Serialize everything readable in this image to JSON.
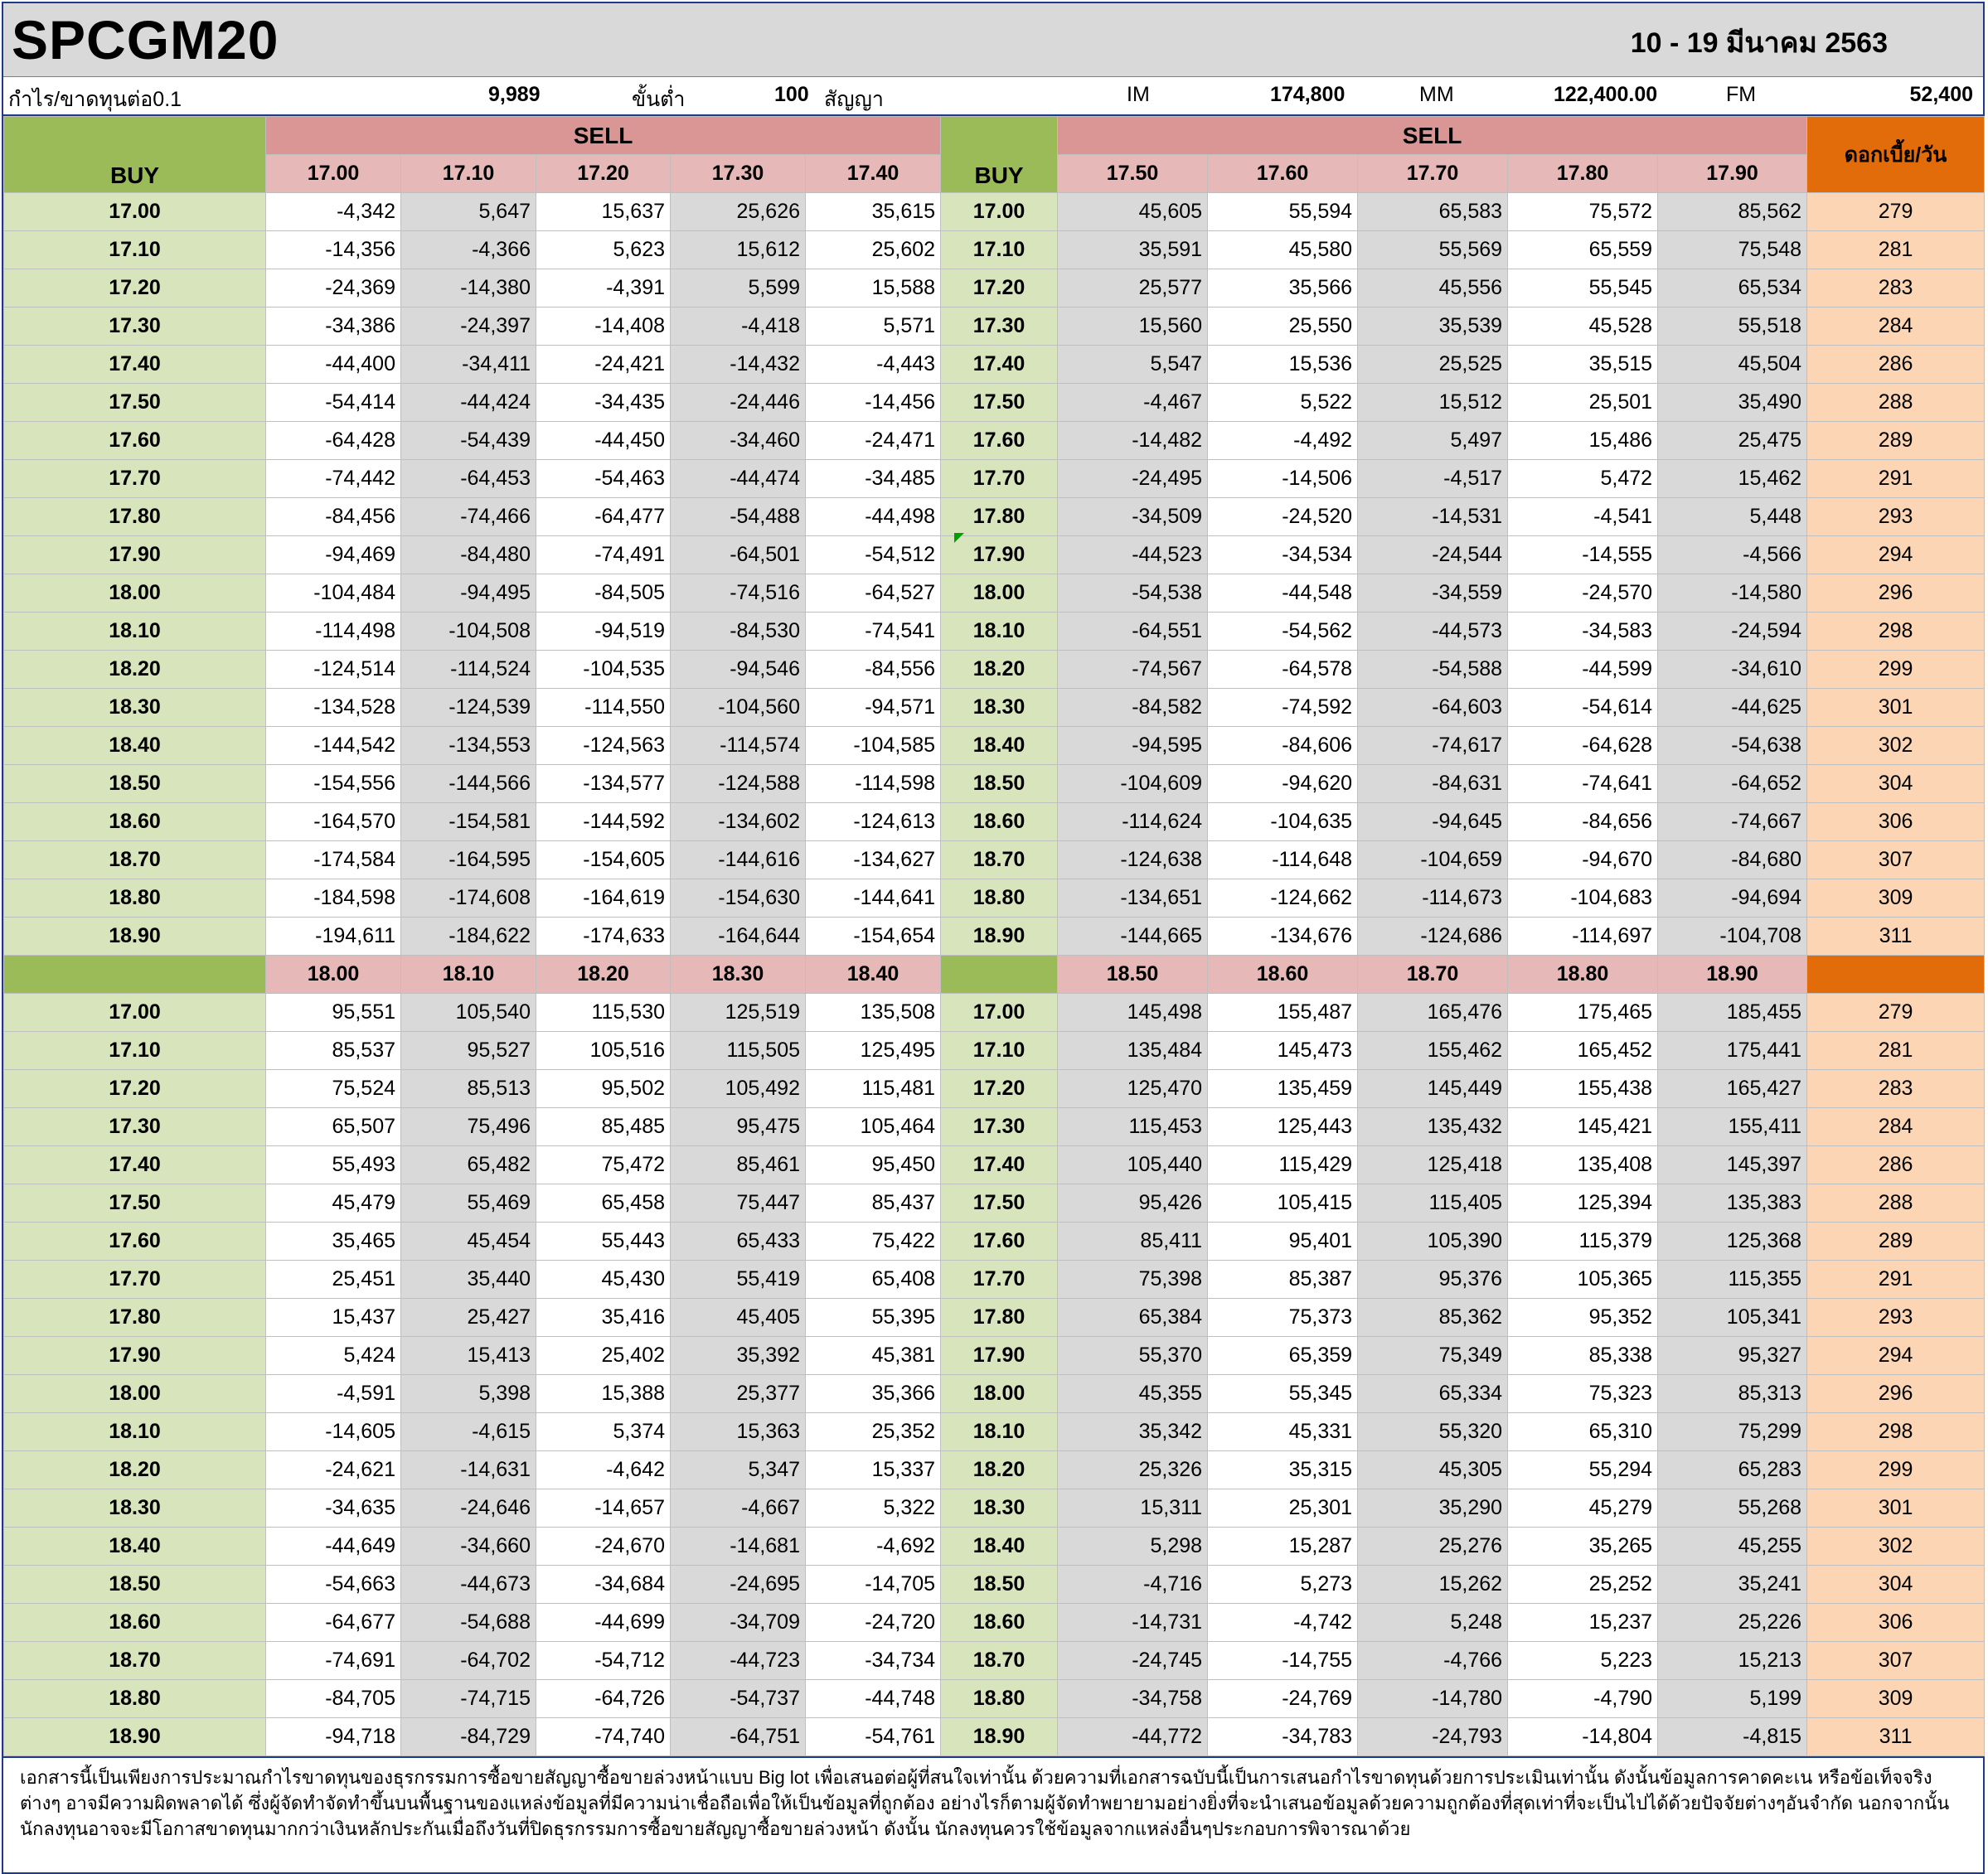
{
  "title": "SPCGM20",
  "date_range": "10  -  19 มีนาคม 2563",
  "info": {
    "profit_label": "กำไร/ขาดทุนต่อ0.1",
    "profit_value": "9,989",
    "min_label": "ขั้นต่ำ",
    "min_value": "100",
    "contract_label": "สัญญา",
    "im_label": "IM",
    "im_value": "174,800",
    "mm_label": "MM",
    "mm_value": "122,400.00",
    "fm_label": "FM",
    "fm_value": "52,400"
  },
  "labels": {
    "buy": "BUY",
    "sell": "SELL",
    "interest": "ดอกเบี้ย/วัน"
  },
  "buy_prices": [
    "17.00",
    "17.10",
    "17.20",
    "17.30",
    "17.40",
    "17.50",
    "17.60",
    "17.70",
    "17.80",
    "17.90",
    "18.00",
    "18.10",
    "18.20",
    "18.30",
    "18.40",
    "18.50",
    "18.60",
    "18.70",
    "18.80",
    "18.90"
  ],
  "interest": [
    "279",
    "281",
    "283",
    "284",
    "286",
    "288",
    "289",
    "291",
    "293",
    "294",
    "296",
    "298",
    "299",
    "301",
    "302",
    "304",
    "306",
    "307",
    "309",
    "311"
  ],
  "blocks": [
    {
      "sell_left": [
        "17.00",
        "17.10",
        "17.20",
        "17.30",
        "17.40"
      ],
      "sell_right": [
        "17.50",
        "17.60",
        "17.70",
        "17.80",
        "17.90"
      ],
      "rows": [
        [
          "-4,342",
          "5,647",
          "15,637",
          "25,626",
          "35,615",
          "45,605",
          "55,594",
          "65,583",
          "75,572",
          "85,562"
        ],
        [
          "-14,356",
          "-4,366",
          "5,623",
          "15,612",
          "25,602",
          "35,591",
          "45,580",
          "55,569",
          "65,559",
          "75,548"
        ],
        [
          "-24,369",
          "-14,380",
          "-4,391",
          "5,599",
          "15,588",
          "25,577",
          "35,566",
          "45,556",
          "55,545",
          "65,534"
        ],
        [
          "-34,386",
          "-24,397",
          "-14,408",
          "-4,418",
          "5,571",
          "15,560",
          "25,550",
          "35,539",
          "45,528",
          "55,518"
        ],
        [
          "-44,400",
          "-34,411",
          "-24,421",
          "-14,432",
          "-4,443",
          "5,547",
          "15,536",
          "25,525",
          "35,515",
          "45,504"
        ],
        [
          "-54,414",
          "-44,424",
          "-34,435",
          "-24,446",
          "-14,456",
          "-4,467",
          "5,522",
          "15,512",
          "25,501",
          "35,490"
        ],
        [
          "-64,428",
          "-54,439",
          "-44,450",
          "-34,460",
          "-24,471",
          "-14,482",
          "-4,492",
          "5,497",
          "15,486",
          "25,475"
        ],
        [
          "-74,442",
          "-64,453",
          "-54,463",
          "-44,474",
          "-34,485",
          "-24,495",
          "-14,506",
          "-4,517",
          "5,472",
          "15,462"
        ],
        [
          "-84,456",
          "-74,466",
          "-64,477",
          "-54,488",
          "-44,498",
          "-34,509",
          "-24,520",
          "-14,531",
          "-4,541",
          "5,448"
        ],
        [
          "-94,469",
          "-84,480",
          "-74,491",
          "-64,501",
          "-54,512",
          "-44,523",
          "-34,534",
          "-24,544",
          "-14,555",
          "-4,566"
        ],
        [
          "-104,484",
          "-94,495",
          "-84,505",
          "-74,516",
          "-64,527",
          "-54,538",
          "-44,548",
          "-34,559",
          "-24,570",
          "-14,580"
        ],
        [
          "-114,498",
          "-104,508",
          "-94,519",
          "-84,530",
          "-74,541",
          "-64,551",
          "-54,562",
          "-44,573",
          "-34,583",
          "-24,594"
        ],
        [
          "-124,514",
          "-114,524",
          "-104,535",
          "-94,546",
          "-84,556",
          "-74,567",
          "-64,578",
          "-54,588",
          "-44,599",
          "-34,610"
        ],
        [
          "-134,528",
          "-124,539",
          "-114,550",
          "-104,560",
          "-94,571",
          "-84,582",
          "-74,592",
          "-64,603",
          "-54,614",
          "-44,625"
        ],
        [
          "-144,542",
          "-134,553",
          "-124,563",
          "-114,574",
          "-104,585",
          "-94,595",
          "-84,606",
          "-74,617",
          "-64,628",
          "-54,638"
        ],
        [
          "-154,556",
          "-144,566",
          "-134,577",
          "-124,588",
          "-114,598",
          "-104,609",
          "-94,620",
          "-84,631",
          "-74,641",
          "-64,652"
        ],
        [
          "-164,570",
          "-154,581",
          "-144,592",
          "-134,602",
          "-124,613",
          "-114,624",
          "-104,635",
          "-94,645",
          "-84,656",
          "-74,667"
        ],
        [
          "-174,584",
          "-164,595",
          "-154,605",
          "-144,616",
          "-134,627",
          "-124,638",
          "-114,648",
          "-104,659",
          "-94,670",
          "-84,680"
        ],
        [
          "-184,598",
          "-174,608",
          "-164,619",
          "-154,630",
          "-144,641",
          "-134,651",
          "-124,662",
          "-114,673",
          "-104,683",
          "-94,694"
        ],
        [
          "-194,611",
          "-184,622",
          "-174,633",
          "-164,644",
          "-154,654",
          "-144,665",
          "-134,676",
          "-124,686",
          "-114,697",
          "-104,708"
        ]
      ]
    },
    {
      "sell_left": [
        "18.00",
        "18.10",
        "18.20",
        "18.30",
        "18.40"
      ],
      "sell_right": [
        "18.50",
        "18.60",
        "18.70",
        "18.80",
        "18.90"
      ],
      "rows": [
        [
          "95,551",
          "105,540",
          "115,530",
          "125,519",
          "135,508",
          "145,498",
          "155,487",
          "165,476",
          "175,465",
          "185,455"
        ],
        [
          "85,537",
          "95,527",
          "105,516",
          "115,505",
          "125,495",
          "135,484",
          "145,473",
          "155,462",
          "165,452",
          "175,441"
        ],
        [
          "75,524",
          "85,513",
          "95,502",
          "105,492",
          "115,481",
          "125,470",
          "135,459",
          "145,449",
          "155,438",
          "165,427"
        ],
        [
          "65,507",
          "75,496",
          "85,485",
          "95,475",
          "105,464",
          "115,453",
          "125,443",
          "135,432",
          "145,421",
          "155,411"
        ],
        [
          "55,493",
          "65,482",
          "75,472",
          "85,461",
          "95,450",
          "105,440",
          "115,429",
          "125,418",
          "135,408",
          "145,397"
        ],
        [
          "45,479",
          "55,469",
          "65,458",
          "75,447",
          "85,437",
          "95,426",
          "105,415",
          "115,405",
          "125,394",
          "135,383"
        ],
        [
          "35,465",
          "45,454",
          "55,443",
          "65,433",
          "75,422",
          "85,411",
          "95,401",
          "105,390",
          "115,379",
          "125,368"
        ],
        [
          "25,451",
          "35,440",
          "45,430",
          "55,419",
          "65,408",
          "75,398",
          "85,387",
          "95,376",
          "105,365",
          "115,355"
        ],
        [
          "15,437",
          "25,427",
          "35,416",
          "45,405",
          "55,395",
          "65,384",
          "75,373",
          "85,362",
          "95,352",
          "105,341"
        ],
        [
          "5,424",
          "15,413",
          "25,402",
          "35,392",
          "45,381",
          "55,370",
          "65,359",
          "75,349",
          "85,338",
          "95,327"
        ],
        [
          "-4,591",
          "5,398",
          "15,388",
          "25,377",
          "35,366",
          "45,355",
          "55,345",
          "65,334",
          "75,323",
          "85,313"
        ],
        [
          "-14,605",
          "-4,615",
          "5,374",
          "15,363",
          "25,352",
          "35,342",
          "45,331",
          "55,320",
          "65,310",
          "75,299"
        ],
        [
          "-24,621",
          "-14,631",
          "-4,642",
          "5,347",
          "15,337",
          "25,326",
          "35,315",
          "45,305",
          "55,294",
          "65,283"
        ],
        [
          "-34,635",
          "-24,646",
          "-14,657",
          "-4,667",
          "5,322",
          "15,311",
          "25,301",
          "35,290",
          "45,279",
          "55,268"
        ],
        [
          "-44,649",
          "-34,660",
          "-24,670",
          "-14,681",
          "-4,692",
          "5,298",
          "15,287",
          "25,276",
          "35,265",
          "45,255"
        ],
        [
          "-54,663",
          "-44,673",
          "-34,684",
          "-24,695",
          "-14,705",
          "-4,716",
          "5,273",
          "15,262",
          "25,252",
          "35,241"
        ],
        [
          "-64,677",
          "-54,688",
          "-44,699",
          "-34,709",
          "-24,720",
          "-14,731",
          "-4,742",
          "5,248",
          "15,237",
          "25,226"
        ],
        [
          "-74,691",
          "-64,702",
          "-54,712",
          "-44,723",
          "-34,734",
          "-24,745",
          "-14,755",
          "-4,766",
          "5,223",
          "15,213"
        ],
        [
          "-84,705",
          "-74,715",
          "-64,726",
          "-54,737",
          "-44,748",
          "-34,758",
          "-24,769",
          "-14,780",
          "-4,790",
          "5,199"
        ],
        [
          "-94,718",
          "-84,729",
          "-74,740",
          "-64,751",
          "-54,761",
          "-44,772",
          "-34,783",
          "-24,793",
          "-14,804",
          "-4,815"
        ]
      ]
    }
  ],
  "disclaimer": "เอกสารนี้เป็นเพียงการประมาณกำไรขาดทุนของธุรกรรมการซื้อขายสัญญาซื้อขายล่วงหน้าแบบ  Big lot เพื่อเสนอต่อผู้ที่สนใจเท่านั้น  ด้วยความที่เอกสารฉบับนี้เป็นการเสนอกำไรขาดทุนด้วยการประเมินเท่านั้น  ดังนั้นข้อมูลการคาดคะเน  หรือข้อเท็จจริงต่างๆ  อาจมีความผิดพลาดได้  ซึ่งผู้จัดทำจัดทำขึ้นบนพื้นฐานของแหล่งข้อมูลที่มีความน่าเชื่อถือเพื่อให้เป็นข้อมูลที่ถูกต้อง  อย่างไรก็ตามผู้จัดทำพยายามอย่างยิ่งที่จะนำเสนอข้อมูลด้วยความถูกต้องที่สุดเท่าที่จะเป็นไปได้ด้วยปัจจัยต่างๆอันจำกัด  นอกจากนั้นนักลงทุนอาจจะมีโอกาสขาดทุนมากกว่าเงินหลักประกันเมื่อถึงวันที่ปิดธุรกรรมการซื้อขายสัญญาซื้อขายล่วงหน้า  ดังนั้น นักลงทุนควรใช้ข้อมูลจากแหล่งอื่นๆประกอบการพิจารณาด้วย"
}
